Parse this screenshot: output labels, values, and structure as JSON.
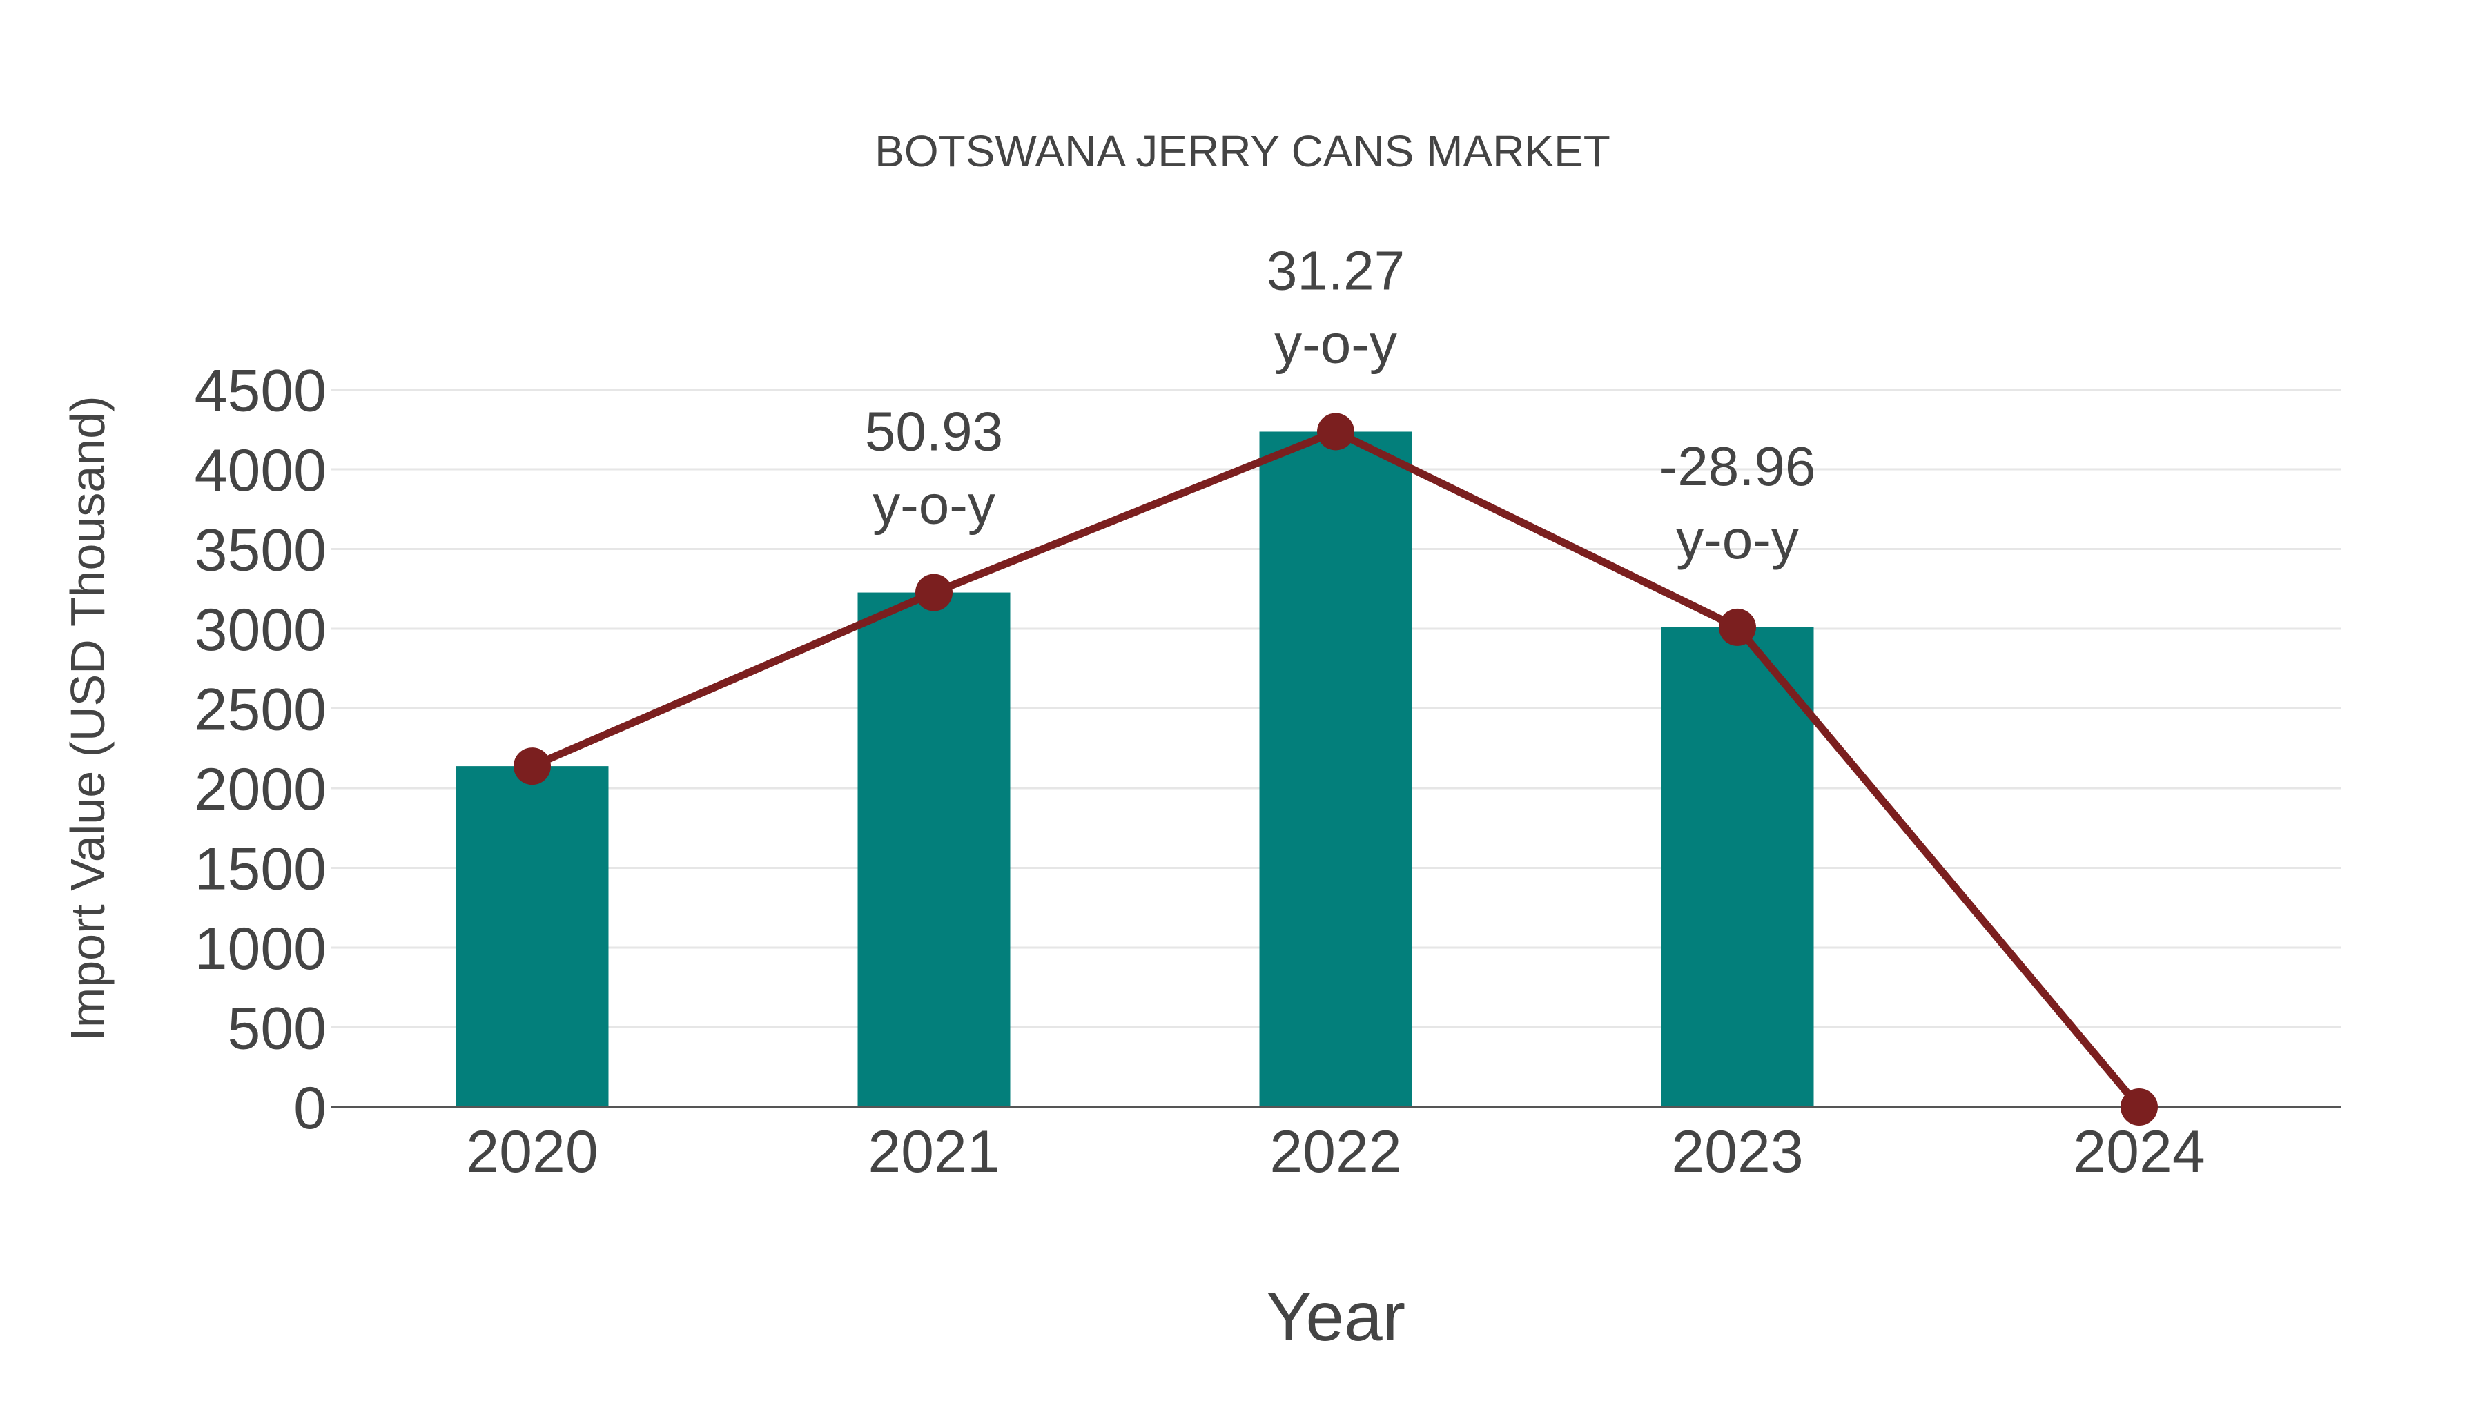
{
  "chart_data": {
    "type": "bar+line",
    "title": "BOTSWANA JERRY CANS MARKET",
    "xlabel": "Year",
    "ylabel": "Import Value (USD Thousand)",
    "categories": [
      "2020",
      "2021",
      "2022",
      "2023",
      "2024"
    ],
    "series": [
      {
        "name": "Import Value (bar)",
        "type": "bar",
        "color": "#037f7b",
        "values": [
          2138,
          3227,
          4236,
          3009,
          0
        ]
      },
      {
        "name": "Import Value (line)",
        "type": "line",
        "color": "#7b1f1f",
        "values": [
          2138,
          3227,
          4236,
          3009,
          0
        ]
      }
    ],
    "annotations": [
      {
        "category": "2021",
        "value": "50.93",
        "suffix": "y-o-y"
      },
      {
        "category": "2022",
        "value": "31.27",
        "suffix": "y-o-y"
      },
      {
        "category": "2023",
        "value": "-28.96",
        "suffix": "y-o-y"
      }
    ],
    "yticks": [
      "0",
      "500",
      "1000",
      "1500",
      "2000",
      "2500",
      "3000",
      "3500",
      "4000",
      "4500"
    ],
    "ylim": [
      0,
      4500
    ],
    "grid": true,
    "legend": "none"
  }
}
